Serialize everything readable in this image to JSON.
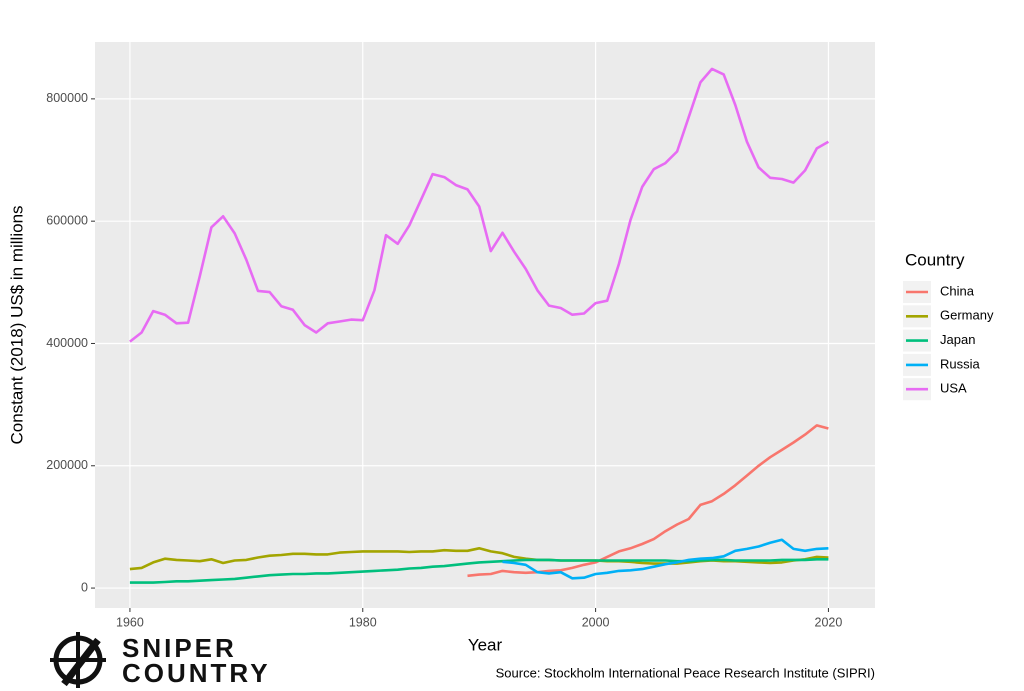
{
  "chart_data": {
    "type": "line",
    "y_label": "Constant (2018) US$ in millions",
    "x_label": "Year",
    "legend_title": "Country",
    "legend_position": "right",
    "caption": "Source: Stockholm International Peace Research Institute (SIPRI)",
    "grid": true,
    "xlim": [
      1957,
      2024
    ],
    "ylim": [
      -32600,
      893000
    ],
    "xticks": [
      1960,
      1980,
      2000,
      2020
    ],
    "yticks": [
      0,
      200000,
      400000,
      600000,
      800000
    ],
    "x": [
      1960,
      1961,
      1962,
      1963,
      1964,
      1965,
      1966,
      1967,
      1968,
      1969,
      1970,
      1971,
      1972,
      1973,
      1974,
      1975,
      1976,
      1977,
      1978,
      1979,
      1980,
      1981,
      1982,
      1983,
      1984,
      1985,
      1986,
      1987,
      1988,
      1989,
      1990,
      1991,
      1992,
      1993,
      1994,
      1995,
      1996,
      1997,
      1998,
      1999,
      2000,
      2001,
      2002,
      2003,
      2004,
      2005,
      2006,
      2007,
      2008,
      2009,
      2010,
      2011,
      2012,
      2013,
      2014,
      2015,
      2016,
      2017,
      2018,
      2019,
      2020
    ],
    "series": [
      {
        "name": "China",
        "color": "#f8766d",
        "values": [
          null,
          null,
          null,
          null,
          null,
          null,
          null,
          null,
          null,
          null,
          null,
          null,
          null,
          null,
          null,
          null,
          null,
          null,
          null,
          null,
          null,
          null,
          null,
          null,
          null,
          null,
          null,
          null,
          null,
          20000,
          22000,
          23000,
          28000,
          26000,
          25000,
          26000,
          28000,
          29000,
          33000,
          38000,
          42000,
          51000,
          60000,
          65000,
          72000,
          80000,
          93000,
          104000,
          113000,
          136000,
          142000,
          154000,
          168000,
          184000,
          200000,
          214000,
          226000,
          238000,
          251000,
          266000,
          261000
        ]
      },
      {
        "name": "Germany",
        "color": "#a3a500",
        "values": [
          31000,
          33000,
          42000,
          48000,
          46000,
          45000,
          44000,
          47000,
          41000,
          45000,
          46000,
          50000,
          53000,
          54000,
          56000,
          56000,
          55000,
          55000,
          58000,
          59000,
          60000,
          60000,
          60000,
          60000,
          59000,
          60000,
          60000,
          62000,
          61000,
          61000,
          65000,
          60000,
          57000,
          51000,
          48000,
          46000,
          46000,
          45000,
          45000,
          45000,
          45000,
          44000,
          44000,
          43000,
          41000,
          40000,
          40000,
          40000,
          42000,
          44000,
          45000,
          44000,
          44000,
          43000,
          42000,
          41000,
          42000,
          45000,
          47000,
          51000,
          50000
        ]
      },
      {
        "name": "Japan",
        "color": "#00bf7d",
        "values": [
          9000,
          9000,
          9000,
          10000,
          11000,
          11000,
          12000,
          13000,
          14000,
          15000,
          17000,
          19000,
          21000,
          22000,
          23000,
          23000,
          24000,
          24000,
          25000,
          26000,
          27000,
          28000,
          29000,
          30000,
          32000,
          33000,
          35000,
          36000,
          38000,
          40000,
          42000,
          43000,
          44000,
          45000,
          46000,
          46000,
          46000,
          45000,
          45000,
          45000,
          45000,
          45000,
          45000,
          45000,
          45000,
          45000,
          45000,
          44000,
          44000,
          45000,
          46000,
          46000,
          45000,
          45000,
          45000,
          45000,
          46000,
          46000,
          46000,
          47000,
          47000
        ]
      },
      {
        "name": "Russia",
        "color": "#00b0f6",
        "values": [
          null,
          null,
          null,
          null,
          null,
          null,
          null,
          null,
          null,
          null,
          null,
          null,
          null,
          null,
          null,
          null,
          null,
          null,
          null,
          null,
          null,
          null,
          null,
          null,
          null,
          null,
          null,
          null,
          null,
          null,
          null,
          null,
          43000,
          41000,
          38000,
          26000,
          24000,
          26000,
          16000,
          17000,
          23000,
          25000,
          28000,
          29000,
          31000,
          35000,
          39000,
          42000,
          46000,
          48000,
          49000,
          52000,
          61000,
          64000,
          68000,
          74000,
          79000,
          64000,
          61000,
          64000,
          65000
        ]
      },
      {
        "name": "USA",
        "color": "#e76bf3",
        "values": [
          403000,
          418000,
          453000,
          447000,
          433000,
          434000,
          510000,
          590000,
          608000,
          580000,
          537000,
          486000,
          484000,
          461000,
          455000,
          430000,
          418000,
          433000,
          436000,
          439000,
          438000,
          487000,
          577000,
          563000,
          593000,
          635000,
          677000,
          672000,
          659000,
          652000,
          624000,
          551000,
          581000,
          550000,
          522000,
          487000,
          462000,
          458000,
          447000,
          449000,
          466000,
          470000,
          530000,
          602000,
          656000,
          685000,
          695000,
          714000,
          770000,
          827000,
          849000,
          840000,
          790000,
          730000,
          688000,
          671000,
          669000,
          663000,
          683000,
          719000,
          730000
        ]
      }
    ]
  },
  "logo": {
    "line1": "SNIPER",
    "line2": "COUNTRY"
  }
}
